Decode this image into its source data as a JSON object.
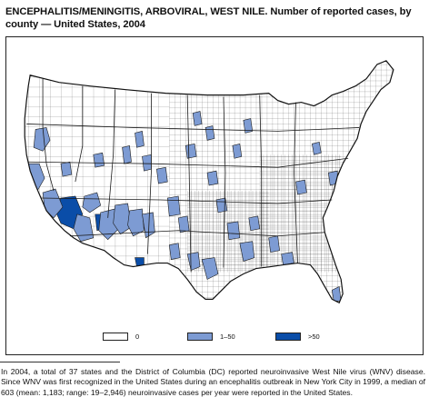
{
  "title": "ENCEPHALITIS/MENINGITIS, ARBOVIRAL, WEST NILE. Number of reported cases, by county — United States, 2004",
  "colors": {
    "zero": "#ffffff",
    "low": "#7d9bd3",
    "high": "#0a4da8",
    "border": "#1b1b1b"
  },
  "legend": {
    "items": [
      {
        "label": "0",
        "color": "#ffffff"
      },
      {
        "label": "1–50",
        "color": "#7d9bd3"
      },
      {
        "label": ">50",
        "color": "#0a4da8"
      }
    ]
  },
  "footnote": "In 2004, a total of 37 states and the District of Columbia (DC) reported neuroinvasive West Nile virus (WNV) disease. Since WNV was first recognized in the United States during an encephalitis outbreak in New York City in 1999, a median of 603 (mean: 1,183; range: 19–2,946) neuroinvasive cases per year were reported in the United States."
}
